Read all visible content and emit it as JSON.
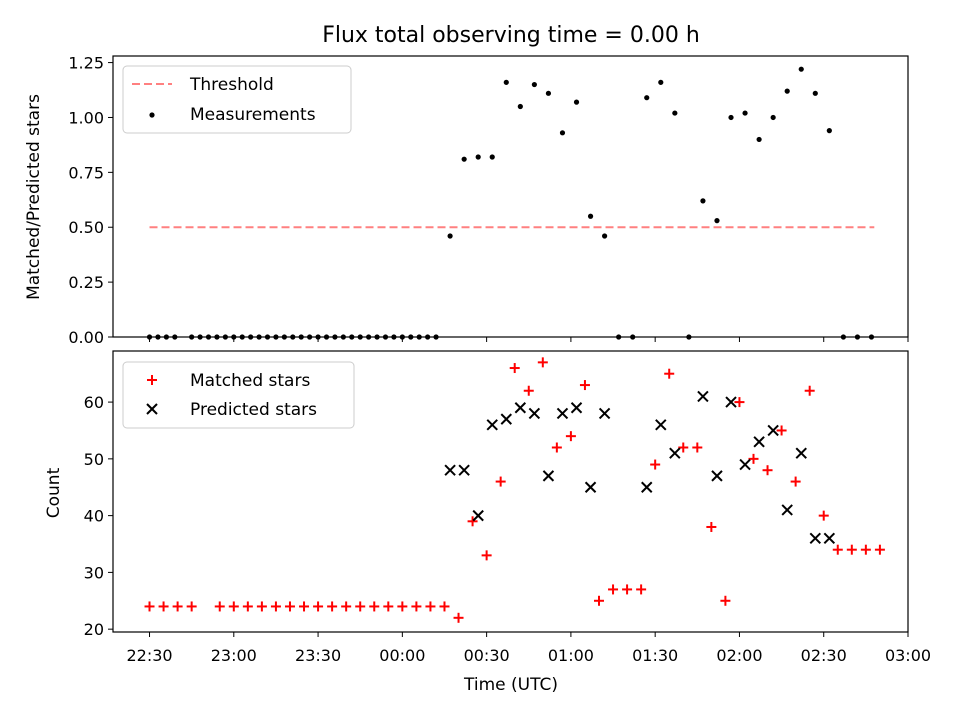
{
  "title": "Flux total observing time = 0.00 h",
  "xlabel": "Time (UTC)",
  "chart_data": [
    {
      "type": "scatter",
      "ylabel": "Matched/Predicted stars",
      "xlim": [
        "22:17",
        "03:00"
      ],
      "ylim": [
        0,
        1.28
      ],
      "yticks": [
        "0.00",
        "0.25",
        "0.50",
        "0.75",
        "1.00",
        "1.25"
      ],
      "legend_position": "upper-left",
      "threshold": {
        "name": "Threshold",
        "value": 0.5,
        "x_start": "22:30",
        "x_end": "02:48",
        "color": "#ff8080"
      },
      "series": [
        {
          "name": "Measurements",
          "color": "#000000",
          "points": [
            [
              "22:30",
              0
            ],
            [
              "22:33",
              0
            ],
            [
              "22:36",
              0
            ],
            [
              "22:39",
              0
            ],
            [
              "22:45",
              0
            ],
            [
              "22:48",
              0
            ],
            [
              "22:51",
              0
            ],
            [
              "22:54",
              0
            ],
            [
              "22:57",
              0
            ],
            [
              "23:00",
              0
            ],
            [
              "23:03",
              0
            ],
            [
              "23:06",
              0
            ],
            [
              "23:09",
              0
            ],
            [
              "23:12",
              0
            ],
            [
              "23:15",
              0
            ],
            [
              "23:18",
              0
            ],
            [
              "23:21",
              0
            ],
            [
              "23:24",
              0
            ],
            [
              "23:27",
              0
            ],
            [
              "23:30",
              0
            ],
            [
              "23:33",
              0
            ],
            [
              "23:36",
              0
            ],
            [
              "23:39",
              0
            ],
            [
              "23:42",
              0
            ],
            [
              "23:45",
              0
            ],
            [
              "23:48",
              0
            ],
            [
              "23:51",
              0
            ],
            [
              "23:54",
              0
            ],
            [
              "23:57",
              0
            ],
            [
              "00:00",
              0
            ],
            [
              "00:03",
              0
            ],
            [
              "00:06",
              0
            ],
            [
              "00:09",
              0
            ],
            [
              "00:12",
              0
            ],
            [
              "00:17",
              0.46
            ],
            [
              "00:22",
              0.81
            ],
            [
              "00:27",
              0.82
            ],
            [
              "00:32",
              0.82
            ],
            [
              "00:37",
              1.16
            ],
            [
              "00:42",
              1.05
            ],
            [
              "00:47",
              1.15
            ],
            [
              "00:52",
              1.11
            ],
            [
              "00:57",
              0.93
            ],
            [
              "01:02",
              1.07
            ],
            [
              "01:07",
              0.55
            ],
            [
              "01:12",
              0.46
            ],
            [
              "01:17",
              0
            ],
            [
              "01:22",
              0
            ],
            [
              "01:27",
              1.09
            ],
            [
              "01:32",
              1.16
            ],
            [
              "01:37",
              1.02
            ],
            [
              "01:42",
              0
            ],
            [
              "01:47",
              0.62
            ],
            [
              "01:52",
              0.53
            ],
            [
              "01:57",
              1.0
            ],
            [
              "02:02",
              1.02
            ],
            [
              "02:07",
              0.9
            ],
            [
              "02:12",
              1.0
            ],
            [
              "02:17",
              1.12
            ],
            [
              "02:22",
              1.22
            ],
            [
              "02:27",
              1.11
            ],
            [
              "02:32",
              0.94
            ],
            [
              "02:37",
              0
            ],
            [
              "02:42",
              0
            ],
            [
              "02:47",
              0
            ]
          ]
        }
      ]
    },
    {
      "type": "scatter",
      "ylabel": "Count",
      "xlim": [
        "22:17",
        "03:00"
      ],
      "ylim": [
        19.5,
        69
      ],
      "yticks": [
        "20",
        "30",
        "40",
        "50",
        "60"
      ],
      "xticks": [
        "22:30",
        "23:00",
        "23:30",
        "00:00",
        "00:30",
        "01:00",
        "01:30",
        "02:00",
        "02:30",
        "03:00"
      ],
      "legend_position": "upper-left",
      "series": [
        {
          "name": "Matched stars",
          "marker": "plus",
          "color": "#ff0000",
          "points": [
            [
              "22:30",
              24
            ],
            [
              "22:35",
              24
            ],
            [
              "22:40",
              24
            ],
            [
              "22:45",
              24
            ],
            [
              "22:55",
              24
            ],
            [
              "23:00",
              24
            ],
            [
              "23:05",
              24
            ],
            [
              "23:10",
              24
            ],
            [
              "23:15",
              24
            ],
            [
              "23:20",
              24
            ],
            [
              "23:25",
              24
            ],
            [
              "23:30",
              24
            ],
            [
              "23:35",
              24
            ],
            [
              "23:40",
              24
            ],
            [
              "23:45",
              24
            ],
            [
              "23:50",
              24
            ],
            [
              "23:55",
              24
            ],
            [
              "00:00",
              24
            ],
            [
              "00:05",
              24
            ],
            [
              "00:10",
              24
            ],
            [
              "00:15",
              24
            ],
            [
              "00:20",
              22
            ],
            [
              "00:25",
              39
            ],
            [
              "00:30",
              33
            ],
            [
              "00:35",
              46
            ],
            [
              "00:40",
              66
            ],
            [
              "00:45",
              62
            ],
            [
              "00:50",
              67
            ],
            [
              "00:55",
              52
            ],
            [
              "01:00",
              54
            ],
            [
              "01:05",
              63
            ],
            [
              "01:10",
              25
            ],
            [
              "01:15",
              27
            ],
            [
              "01:20",
              27
            ],
            [
              "01:25",
              27
            ],
            [
              "01:30",
              49
            ],
            [
              "01:35",
              65
            ],
            [
              "01:40",
              52
            ],
            [
              "01:45",
              52
            ],
            [
              "01:50",
              38
            ],
            [
              "01:55",
              25
            ],
            [
              "02:00",
              60
            ],
            [
              "02:05",
              50
            ],
            [
              "02:10",
              48
            ],
            [
              "02:15",
              55
            ],
            [
              "02:20",
              46
            ],
            [
              "02:25",
              62
            ],
            [
              "02:30",
              40
            ],
            [
              "02:35",
              34
            ],
            [
              "02:40",
              34
            ],
            [
              "02:45",
              34
            ],
            [
              "02:50",
              34
            ]
          ]
        },
        {
          "name": "Predicted stars",
          "marker": "x",
          "color": "#000000",
          "points": [
            [
              "00:17",
              48
            ],
            [
              "00:22",
              48
            ],
            [
              "00:27",
              40
            ],
            [
              "00:32",
              56
            ],
            [
              "00:37",
              57
            ],
            [
              "00:42",
              59
            ],
            [
              "00:47",
              58
            ],
            [
              "00:52",
              47
            ],
            [
              "00:57",
              58
            ],
            [
              "01:02",
              59
            ],
            [
              "01:07",
              45
            ],
            [
              "01:12",
              58
            ],
            [
              "01:27",
              45
            ],
            [
              "01:32",
              56
            ],
            [
              "01:37",
              51
            ],
            [
              "01:47",
              61
            ],
            [
              "01:52",
              47
            ],
            [
              "01:57",
              60
            ],
            [
              "02:02",
              49
            ],
            [
              "02:07",
              53
            ],
            [
              "02:12",
              55
            ],
            [
              "02:17",
              41
            ],
            [
              "02:22",
              51
            ],
            [
              "02:27",
              36
            ],
            [
              "02:32",
              36
            ]
          ]
        }
      ]
    }
  ]
}
